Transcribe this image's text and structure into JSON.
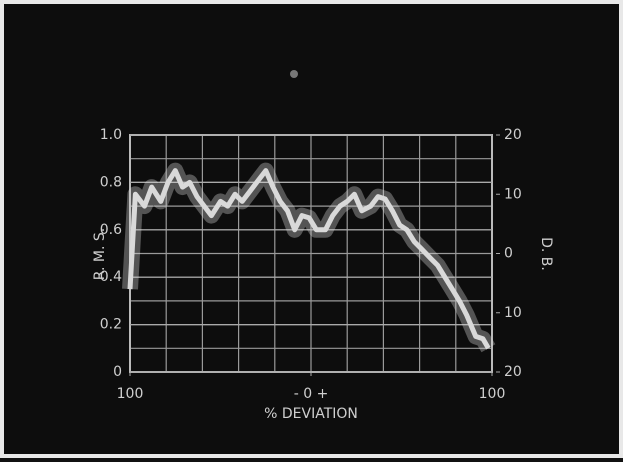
{
  "chart_data": {
    "type": "line",
    "ylabel": "R. M. S.",
    "y2label": "D. B.",
    "xlabel": "% DEVIATION",
    "xlim": [
      -100,
      100
    ],
    "xticks": [
      {
        "value": -100,
        "label": "100"
      },
      {
        "value": 0,
        "label": "- 0 +"
      },
      100
    ],
    "ylim": [
      0,
      1
    ],
    "yticks": [
      0,
      0.2,
      0.4,
      0.6,
      0.8,
      {
        "value": 1,
        "label": "1.0"
      }
    ],
    "y2lim": [
      -20,
      20
    ],
    "y2ticks": [
      20,
      10,
      0,
      {
        "value": -10,
        "label": "10"
      },
      {
        "value": -20,
        "label": "20"
      }
    ],
    "grid": true,
    "series": [
      {
        "color": "#d9d9d9",
        "x": [
          -100,
          -97,
          -92,
          -88,
          -83,
          -79,
          -75,
          -71,
          -67,
          -63,
          -59,
          -55,
          -50,
          -46,
          -42,
          -38,
          -34,
          -30,
          -25,
          -21,
          -17,
          -13,
          -9,
          -5,
          -1,
          3,
          8,
          12,
          16,
          20,
          24,
          28,
          33,
          37,
          41,
          45,
          49,
          53,
          57,
          61,
          66,
          70,
          74,
          78,
          82,
          86,
          91,
          95,
          98
        ],
        "values": [
          0.35,
          0.75,
          0.7,
          0.78,
          0.72,
          0.8,
          0.85,
          0.78,
          0.8,
          0.74,
          0.7,
          0.66,
          0.72,
          0.7,
          0.75,
          0.72,
          0.76,
          0.8,
          0.85,
          0.78,
          0.72,
          0.68,
          0.6,
          0.66,
          0.65,
          0.6,
          0.6,
          0.66,
          0.7,
          0.72,
          0.75,
          0.68,
          0.7,
          0.74,
          0.73,
          0.68,
          0.62,
          0.6,
          0.55,
          0.52,
          0.48,
          0.45,
          0.4,
          0.35,
          0.3,
          0.24,
          0.15,
          0.14,
          0.1
        ]
      }
    ]
  }
}
